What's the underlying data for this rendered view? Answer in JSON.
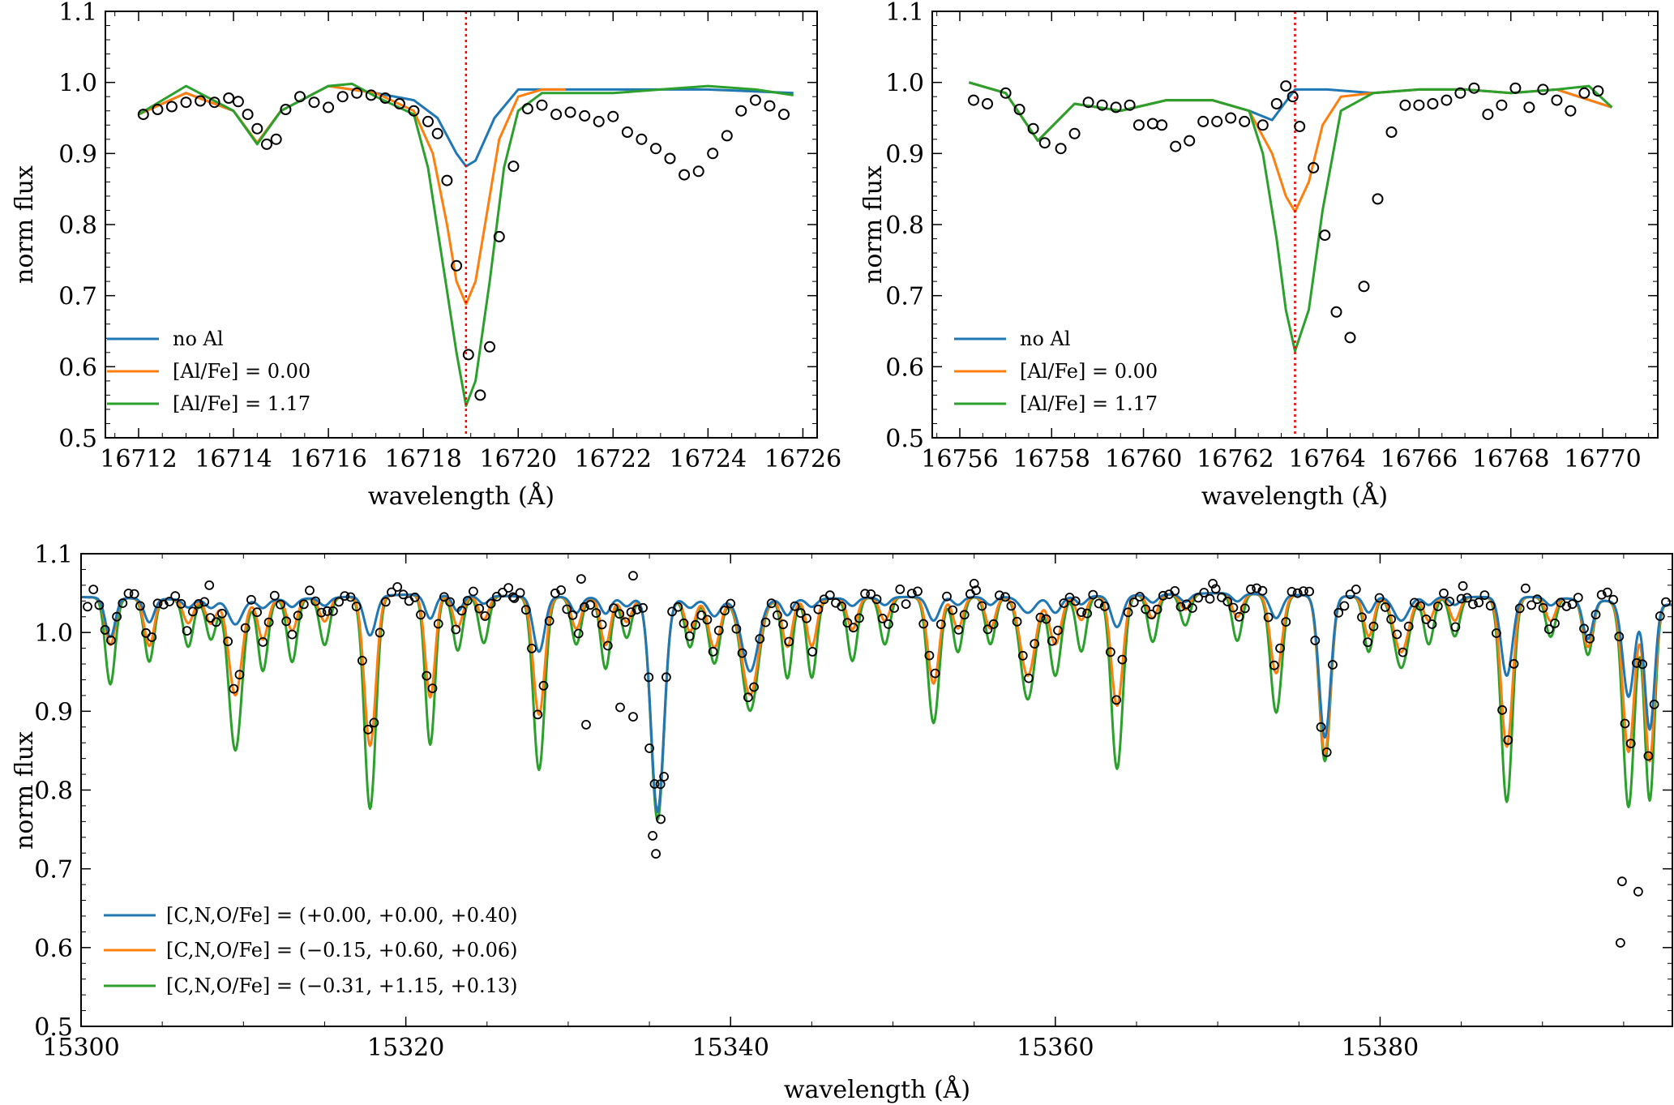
{
  "colors": {
    "blue": "#1f77b4",
    "orange": "#ff7f0e",
    "green": "#2ca02c",
    "marker": "#000000",
    "refline": "#ff0000"
  },
  "chart_data": [
    {
      "type": "line",
      "xlabel": "wavelength (Å)",
      "ylabel": "norm flux",
      "xlim": [
        16711.3,
        16726.3
      ],
      "ylim": [
        0.5,
        1.1
      ],
      "xticks": [
        "16712",
        "16714",
        "16716",
        "16718",
        "16720",
        "16722",
        "16724",
        "16726"
      ],
      "yticks": [
        "0.5",
        "0.6",
        "0.7",
        "0.8",
        "0.9",
        "1.0",
        "1.1"
      ],
      "legend_position": "lower-left",
      "reference_line": 16718.9,
      "series": [
        {
          "name": "no Al",
          "color": "blue",
          "x": [
            16712.0,
            16713.0,
            16714.0,
            16714.5,
            16715.0,
            16716.0,
            16717.0,
            16717.8,
            16718.3,
            16718.7,
            16718.9,
            16719.1,
            16719.5,
            16720.0,
            16720.5,
            16722.0,
            16724.0,
            16725.8
          ],
          "y": [
            0.955,
            0.985,
            0.96,
            0.915,
            0.96,
            0.995,
            0.985,
            0.975,
            0.95,
            0.9,
            0.882,
            0.89,
            0.95,
            0.99,
            0.99,
            0.99,
            0.99,
            0.985
          ]
        },
        {
          "name": "[Al/Fe] = 0.00",
          "color": "orange",
          "x": [
            16712.0,
            16713.0,
            16714.0,
            16714.5,
            16715.0,
            16716.0,
            16717.0,
            16717.8,
            16718.2,
            16718.5,
            16718.7,
            16718.9,
            16719.1,
            16719.3,
            16719.6,
            16720.0,
            16720.5,
            16721.0
          ],
          "y": [
            0.955,
            0.985,
            0.96,
            0.915,
            0.96,
            0.995,
            0.985,
            0.96,
            0.9,
            0.8,
            0.72,
            0.688,
            0.72,
            0.8,
            0.92,
            0.98,
            0.99,
            0.99
          ]
        },
        {
          "name": "[Al/Fe] = 1.17",
          "color": "green",
          "x": [
            16712.0,
            16713.0,
            16714.0,
            16714.5,
            16715.0,
            16716.0,
            16716.5,
            16717.0,
            16717.8,
            16718.1,
            16718.4,
            16718.7,
            16718.9,
            16719.1,
            16719.4,
            16719.7,
            16720.0,
            16720.5,
            16721.0,
            16722.0,
            16723.0,
            16724.0,
            16725.0,
            16725.8
          ],
          "y": [
            0.955,
            0.995,
            0.96,
            0.913,
            0.96,
            0.995,
            0.998,
            0.98,
            0.955,
            0.88,
            0.75,
            0.62,
            0.545,
            0.58,
            0.72,
            0.88,
            0.96,
            0.985,
            0.985,
            0.985,
            0.99,
            0.995,
            0.99,
            0.982
          ]
        }
      ],
      "observed": {
        "x": [
          16712.1,
          16712.4,
          16712.7,
          16713.0,
          16713.3,
          16713.6,
          16713.9,
          16714.1,
          16714.3,
          16714.5,
          16714.7,
          16714.9,
          16715.1,
          16715.4,
          16715.7,
          16716.0,
          16716.3,
          16716.6,
          16716.9,
          16717.2,
          16717.5,
          16717.8,
          16718.1,
          16718.3,
          16718.5,
          16718.7,
          16718.95,
          16719.2,
          16719.4,
          16719.6,
          16719.9,
          16720.2,
          16720.5,
          16720.8,
          16721.1,
          16721.4,
          16721.7,
          16722.0,
          16722.3,
          16722.6,
          16722.9,
          16723.2,
          16723.5,
          16723.8,
          16724.1,
          16724.4,
          16724.7,
          16725.0,
          16725.3,
          16725.6
        ],
        "y": [
          0.955,
          0.962,
          0.966,
          0.972,
          0.974,
          0.972,
          0.978,
          0.973,
          0.955,
          0.935,
          0.913,
          0.92,
          0.962,
          0.98,
          0.972,
          0.965,
          0.98,
          0.985,
          0.982,
          0.978,
          0.97,
          0.96,
          0.945,
          0.928,
          0.862,
          0.742,
          0.617,
          0.56,
          0.628,
          0.783,
          0.882,
          0.963,
          0.968,
          0.955,
          0.958,
          0.953,
          0.945,
          0.952,
          0.93,
          0.92,
          0.907,
          0.893,
          0.87,
          0.875,
          0.9,
          0.925,
          0.96,
          0.975,
          0.967,
          0.955
        ]
      }
    },
    {
      "type": "line",
      "xlabel": "wavelength (Å)",
      "ylabel": "norm flux",
      "xlim": [
        16755.4,
        16771.2
      ],
      "ylim": [
        0.5,
        1.1
      ],
      "xticks": [
        "16756",
        "16758",
        "16760",
        "16762",
        "16764",
        "16766",
        "16768",
        "16770"
      ],
      "yticks": [
        "0.5",
        "0.6",
        "0.7",
        "0.8",
        "0.9",
        "1.0",
        "1.1"
      ],
      "legend_position": "lower-left",
      "reference_line": 16763.3,
      "series": [
        {
          "name": "no Al",
          "color": "blue",
          "x": [
            16756.2,
            16757.0,
            16757.7,
            16758.5,
            16759.5,
            16760.5,
            16761.5,
            16762.3,
            16762.8,
            16763.3,
            16764.0,
            16765.0,
            16766.0,
            16767.0,
            16768.0,
            16769.0,
            16770.2
          ],
          "y": [
            1.0,
            0.985,
            0.918,
            0.97,
            0.96,
            0.975,
            0.975,
            0.96,
            0.947,
            0.99,
            0.99,
            0.985,
            0.99,
            0.99,
            0.985,
            0.99,
            0.965
          ]
        },
        {
          "name": "[Al/Fe] = 0.00",
          "color": "orange",
          "x": [
            16756.2,
            16757.0,
            16757.7,
            16758.5,
            16759.5,
            16760.5,
            16761.5,
            16762.3,
            16762.8,
            16763.1,
            16763.3,
            16763.6,
            16763.9,
            16764.3,
            16765.0,
            16766.0,
            16767.0,
            16768.0,
            16769.0,
            16770.2
          ],
          "y": [
            1.0,
            0.985,
            0.918,
            0.97,
            0.96,
            0.975,
            0.975,
            0.96,
            0.9,
            0.84,
            0.818,
            0.86,
            0.94,
            0.98,
            0.985,
            0.99,
            0.99,
            0.985,
            0.99,
            0.965
          ]
        },
        {
          "name": "[Al/Fe] = 1.17",
          "color": "green",
          "x": [
            16756.2,
            16757.0,
            16757.7,
            16758.5,
            16759.5,
            16760.5,
            16761.5,
            16762.3,
            16762.6,
            16762.9,
            16763.1,
            16763.3,
            16763.6,
            16763.9,
            16764.3,
            16765.0,
            16766.0,
            16767.0,
            16768.0,
            16769.0,
            16769.7,
            16770.2
          ],
          "y": [
            1.0,
            0.985,
            0.918,
            0.97,
            0.96,
            0.975,
            0.975,
            0.96,
            0.9,
            0.78,
            0.68,
            0.622,
            0.68,
            0.82,
            0.96,
            0.985,
            0.99,
            0.99,
            0.985,
            0.99,
            0.995,
            0.965
          ]
        }
      ],
      "observed": {
        "x": [
          16756.3,
          16756.6,
          16757.0,
          16757.3,
          16757.6,
          16757.85,
          16758.2,
          16758.5,
          16758.8,
          16759.1,
          16759.4,
          16759.7,
          16759.9,
          16760.2,
          16760.4,
          16760.7,
          16761.0,
          16761.3,
          16761.6,
          16761.9,
          16762.2,
          16762.6,
          16762.9,
          16763.1,
          16763.25,
          16763.4,
          16763.7,
          16763.95,
          16764.2,
          16764.5,
          16764.8,
          16765.1,
          16765.4,
          16765.7,
          16766.0,
          16766.3,
          16766.6,
          16766.9,
          16767.2,
          16767.5,
          16767.8,
          16768.1,
          16768.4,
          16768.7,
          16769.0,
          16769.3,
          16769.6,
          16769.9
        ],
        "y": [
          0.975,
          0.97,
          0.985,
          0.962,
          0.935,
          0.915,
          0.907,
          0.928,
          0.972,
          0.968,
          0.965,
          0.968,
          0.94,
          0.942,
          0.94,
          0.91,
          0.918,
          0.945,
          0.945,
          0.95,
          0.945,
          0.94,
          0.97,
          0.995,
          0.98,
          0.938,
          0.88,
          0.785,
          0.677,
          0.641,
          0.713,
          0.836,
          0.93,
          0.968,
          0.968,
          0.97,
          0.975,
          0.985,
          0.992,
          0.955,
          0.968,
          0.992,
          0.965,
          0.99,
          0.975,
          0.96,
          0.985,
          0.988
        ]
      }
    },
    {
      "type": "line",
      "xlabel": "wavelength (Å)",
      "ylabel": "norm flux",
      "xlim": [
        15300,
        15398
      ],
      "ylim": [
        0.5,
        1.1
      ],
      "xticks": [
        "15300",
        "15320",
        "15340",
        "15360",
        "15380"
      ],
      "yticks": [
        "0.5",
        "0.6",
        "0.7",
        "0.8",
        "0.9",
        "1.0",
        "1.1"
      ],
      "legend_position": "lower-left",
      "series": [
        {
          "name": "[C,N,O/Fe] = (+0.00, +0.00, +0.40)",
          "color": "blue"
        },
        {
          "name": "[C,N,O/Fe] = (−0.15, +0.60, +0.06)",
          "color": "orange"
        },
        {
          "name": "[C,N,O/Fe] = (−0.31, +1.15, +0.13)",
          "color": "green"
        }
      ],
      "continuum": [
        [
          15300,
          1.045
        ],
        [
          15310,
          1.04
        ],
        [
          15320,
          1.048
        ],
        [
          15330,
          1.045
        ],
        [
          15340,
          1.04
        ],
        [
          15350,
          1.045
        ],
        [
          15360,
          1.045
        ],
        [
          15370,
          1.05
        ],
        [
          15380,
          1.045
        ],
        [
          15390,
          1.045
        ],
        [
          15398,
          1.035
        ]
      ],
      "absorption_lines": [
        {
          "x": 15301.8,
          "blue": 0.05,
          "orange": 0.06,
          "green": 0.11,
          "w": 0.3
        },
        {
          "x": 15304.2,
          "blue": 0.03,
          "orange": 0.06,
          "green": 0.08,
          "w": 0.3
        },
        {
          "x": 15306.6,
          "blue": 0.01,
          "orange": 0.03,
          "green": 0.06,
          "w": 0.3
        },
        {
          "x": 15308.0,
          "blue": 0.01,
          "orange": 0.03,
          "green": 0.05,
          "w": 0.3
        },
        {
          "x": 15309.5,
          "blue": 0.03,
          "orange": 0.12,
          "green": 0.19,
          "w": 0.4
        },
        {
          "x": 15311.2,
          "blue": 0.01,
          "orange": 0.05,
          "green": 0.09,
          "w": 0.3
        },
        {
          "x": 15313.0,
          "blue": 0.01,
          "orange": 0.04,
          "green": 0.08,
          "w": 0.3
        },
        {
          "x": 15315.0,
          "blue": 0.01,
          "orange": 0.03,
          "green": 0.06,
          "w": 0.3
        },
        {
          "x": 15317.8,
          "blue": 0.05,
          "orange": 0.19,
          "green": 0.27,
          "w": 0.35
        },
        {
          "x": 15321.5,
          "blue": 0.03,
          "orange": 0.13,
          "green": 0.19,
          "w": 0.3
        },
        {
          "x": 15323.2,
          "blue": 0.02,
          "orange": 0.04,
          "green": 0.07,
          "w": 0.3
        },
        {
          "x": 15324.8,
          "blue": 0.01,
          "orange": 0.03,
          "green": 0.06,
          "w": 0.3
        },
        {
          "x": 15328.2,
          "blue": 0.07,
          "orange": 0.15,
          "green": 0.22,
          "w": 0.35
        },
        {
          "x": 15330.5,
          "blue": 0.02,
          "orange": 0.04,
          "green": 0.06,
          "w": 0.3
        },
        {
          "x": 15332.3,
          "blue": 0.02,
          "orange": 0.06,
          "green": 0.09,
          "w": 0.3
        },
        {
          "x": 15333.6,
          "blue": 0.01,
          "orange": 0.03,
          "green": 0.05,
          "w": 0.3
        },
        {
          "x": 15335.5,
          "blue": 0.27,
          "orange": 0.27,
          "green": 0.28,
          "w": 0.4
        },
        {
          "x": 15337.5,
          "blue": 0.01,
          "orange": 0.04,
          "green": 0.06,
          "w": 0.3
        },
        {
          "x": 15339.0,
          "blue": 0.02,
          "orange": 0.06,
          "green": 0.08,
          "w": 0.35
        },
        {
          "x": 15341.2,
          "blue": 0.09,
          "orange": 0.12,
          "green": 0.14,
          "w": 0.5
        },
        {
          "x": 15343.5,
          "blue": 0.02,
          "orange": 0.06,
          "green": 0.1,
          "w": 0.3
        },
        {
          "x": 15345.0,
          "blue": 0.01,
          "orange": 0.06,
          "green": 0.1,
          "w": 0.3
        },
        {
          "x": 15347.5,
          "blue": 0.01,
          "orange": 0.04,
          "green": 0.08,
          "w": 0.3
        },
        {
          "x": 15349.5,
          "blue": 0.01,
          "orange": 0.03,
          "green": 0.06,
          "w": 0.3
        },
        {
          "x": 15352.5,
          "blue": 0.03,
          "orange": 0.11,
          "green": 0.16,
          "w": 0.35
        },
        {
          "x": 15354.0,
          "blue": 0.01,
          "orange": 0.04,
          "green": 0.07,
          "w": 0.3
        },
        {
          "x": 15356.0,
          "blue": 0.01,
          "orange": 0.04,
          "green": 0.06,
          "w": 0.3
        },
        {
          "x": 15358.3,
          "blue": 0.02,
          "orange": 0.1,
          "green": 0.13,
          "w": 0.45
        },
        {
          "x": 15360.0,
          "blue": 0.02,
          "orange": 0.06,
          "green": 0.1,
          "w": 0.35
        },
        {
          "x": 15361.6,
          "blue": 0.01,
          "orange": 0.03,
          "green": 0.07,
          "w": 0.3
        },
        {
          "x": 15363.8,
          "blue": 0.04,
          "orange": 0.14,
          "green": 0.22,
          "w": 0.35
        },
        {
          "x": 15366.0,
          "blue": 0.01,
          "orange": 0.03,
          "green": 0.06,
          "w": 0.3
        },
        {
          "x": 15368.0,
          "blue": 0.01,
          "orange": 0.02,
          "green": 0.04,
          "w": 0.3
        },
        {
          "x": 15371.2,
          "blue": 0.01,
          "orange": 0.03,
          "green": 0.06,
          "w": 0.3
        },
        {
          "x": 15373.6,
          "blue": 0.03,
          "orange": 0.1,
          "green": 0.15,
          "w": 0.35
        },
        {
          "x": 15376.6,
          "blue": 0.18,
          "orange": 0.2,
          "green": 0.21,
          "w": 0.35
        },
        {
          "x": 15379.3,
          "blue": 0.02,
          "orange": 0.05,
          "green": 0.07,
          "w": 0.3
        },
        {
          "x": 15381.3,
          "blue": 0.03,
          "orange": 0.07,
          "green": 0.09,
          "w": 0.45
        },
        {
          "x": 15383.0,
          "blue": 0.01,
          "orange": 0.03,
          "green": 0.06,
          "w": 0.3
        },
        {
          "x": 15384.6,
          "blue": 0.01,
          "orange": 0.03,
          "green": 0.05,
          "w": 0.3
        },
        {
          "x": 15387.8,
          "blue": 0.1,
          "orange": 0.19,
          "green": 0.26,
          "w": 0.35
        },
        {
          "x": 15390.5,
          "blue": 0.01,
          "orange": 0.03,
          "green": 0.05,
          "w": 0.3
        },
        {
          "x": 15392.8,
          "blue": 0.05,
          "orange": 0.06,
          "green": 0.07,
          "w": 0.3
        },
        {
          "x": 15395.3,
          "blue": 0.12,
          "orange": 0.19,
          "green": 0.26,
          "w": 0.35
        },
        {
          "x": 15396.6,
          "blue": 0.16,
          "orange": 0.2,
          "green": 0.25,
          "w": 0.3
        }
      ],
      "observed_extra": [
        [
          15330.8,
          1.068
        ],
        [
          15334.0,
          1.072
        ],
        [
          15331.1,
          0.883
        ],
        [
          15333.2,
          0.905
        ],
        [
          15334.0,
          0.893
        ],
        [
          15335.0,
          0.853
        ],
        [
          15335.2,
          0.742
        ],
        [
          15335.4,
          0.719
        ],
        [
          15335.7,
          0.763
        ],
        [
          15335.9,
          0.817
        ],
        [
          15394.9,
          0.684
        ],
        [
          15395.9,
          0.671
        ],
        [
          15394.8,
          0.606
        ],
        [
          15326.6,
          1.045
        ],
        [
          15307.9,
          1.06
        ],
        [
          15355.0,
          1.062
        ],
        [
          15369.7,
          1.062
        ],
        [
          15385.1,
          1.059
        ]
      ]
    }
  ]
}
